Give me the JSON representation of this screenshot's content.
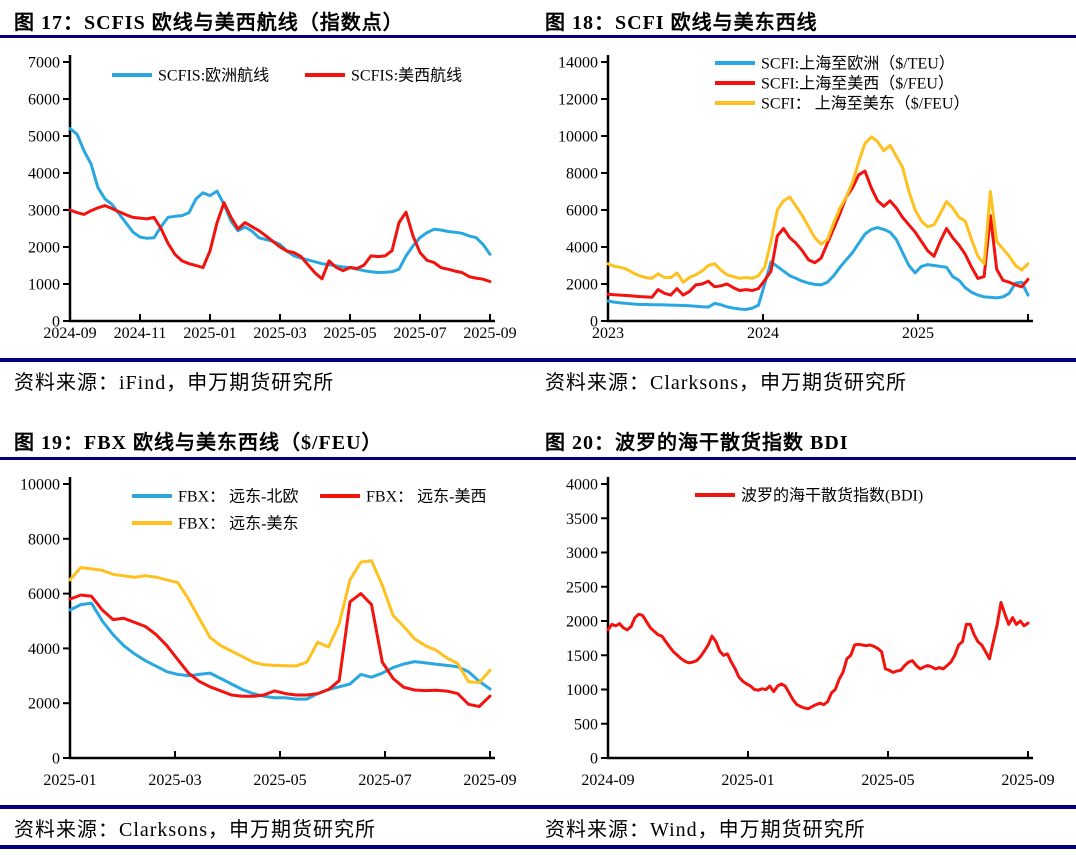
{
  "rule_color": "#000080",
  "chart_data": [
    {
      "type": "line",
      "title": "图 17：SCFIS 欧线与美西航线（指数点）",
      "source": "资料来源：iFind，申万期货研究所",
      "ylim": [
        0,
        7000
      ],
      "yticks": [
        0,
        1000,
        2000,
        3000,
        4000,
        5000,
        6000,
        7000
      ],
      "xticks": [
        {
          "pos": 0,
          "label": "2024-09"
        },
        {
          "pos": 0.1667,
          "label": "2024-11"
        },
        {
          "pos": 0.3333,
          "label": "2025-01"
        },
        {
          "pos": 0.5,
          "label": "2025-03"
        },
        {
          "pos": 0.6667,
          "label": "2025-05"
        },
        {
          "pos": 0.8333,
          "label": "2025-07"
        },
        {
          "pos": 1,
          "label": "2025-09"
        }
      ],
      "series": [
        {
          "name": "SCFIS:欧洲航线",
          "color": "#29A7E0",
          "values": [
            5200,
            5050,
            4600,
            4250,
            3600,
            3300,
            3150,
            2900,
            2650,
            2400,
            2270,
            2235,
            2250,
            2550,
            2800,
            2830,
            2850,
            2930,
            3300,
            3465,
            3390,
            3510,
            3150,
            2700,
            2440,
            2540,
            2430,
            2250,
            2200,
            2150,
            2070,
            1890,
            1760,
            1700,
            1650,
            1600,
            1550,
            1520,
            1490,
            1460,
            1446,
            1400,
            1360,
            1330,
            1311,
            1320,
            1330,
            1400,
            1760,
            2030,
            2254,
            2390,
            2478,
            2460,
            2420,
            2400,
            2370,
            2300,
            2254,
            2074,
            1804
          ]
        },
        {
          "name": "SCFIS:美西航线",
          "color": "#F2120E",
          "values": [
            3000,
            2930,
            2880,
            2980,
            3060,
            3120,
            3040,
            2950,
            2870,
            2800,
            2780,
            2760,
            2800,
            2500,
            2100,
            1800,
            1624,
            1550,
            1500,
            1444,
            1894,
            2650,
            3196,
            2800,
            2490,
            2660,
            2550,
            2440,
            2300,
            2150,
            2000,
            1890,
            1850,
            1740,
            1520,
            1300,
            1140,
            1625,
            1450,
            1360,
            1446,
            1420,
            1510,
            1760,
            1740,
            1760,
            1900,
            2660,
            2940,
            2300,
            1850,
            1640,
            1580,
            1440,
            1400,
            1350,
            1310,
            1200,
            1160,
            1130,
            1068
          ]
        }
      ]
    },
    {
      "type": "line",
      "title": "图 18：SCFI 欧线与美东西线",
      "source": "资料来源：Clarksons，申万期货研究所",
      "ylim": [
        0,
        14000
      ],
      "yticks": [
        0,
        2000,
        4000,
        6000,
        8000,
        10000,
        12000,
        14000
      ],
      "xticks": [
        {
          "pos": 0,
          "label": "2023"
        },
        {
          "pos": 0.369,
          "label": "2024"
        },
        {
          "pos": 0.738,
          "label": "2025"
        },
        {
          "pos": 1,
          "label": ""
        }
      ],
      "series": [
        {
          "name": "SCFI:上海至欧洲（$/TEU）",
          "color": "#29A7E0",
          "values": [
            1080,
            1020,
            980,
            950,
            920,
            900,
            890,
            880,
            880,
            870,
            860,
            850,
            840,
            820,
            800,
            770,
            750,
            950,
            880,
            760,
            700,
            650,
            620,
            700,
            850,
            2000,
            3200,
            2950,
            2700,
            2450,
            2300,
            2150,
            2050,
            1980,
            1950,
            2100,
            2450,
            2900,
            3300,
            3700,
            4200,
            4700,
            4950,
            5050,
            4950,
            4800,
            4400,
            3700,
            3000,
            2600,
            2950,
            3050,
            3000,
            2950,
            2900,
            2400,
            2200,
            1800,
            1550,
            1400,
            1300,
            1280,
            1250,
            1300,
            1500,
            2050,
            2100,
            1400
          ]
        },
        {
          "name": "SCFI:上海至美西（$/FEU）",
          "color": "#F2120E",
          "values": [
            1450,
            1420,
            1400,
            1380,
            1350,
            1320,
            1300,
            1280,
            1700,
            1500,
            1400,
            1750,
            1400,
            1600,
            1950,
            2000,
            2150,
            1850,
            1900,
            2000,
            1800,
            1650,
            1700,
            1650,
            1750,
            2200,
            2700,
            4600,
            5000,
            4500,
            4200,
            3800,
            3300,
            3150,
            3400,
            4200,
            5000,
            5800,
            6700,
            7200,
            7900,
            8100,
            7200,
            6500,
            6200,
            6500,
            6100,
            5600,
            5200,
            4800,
            4300,
            3800,
            3500,
            4300,
            5000,
            4500,
            4100,
            3600,
            2900,
            2300,
            2400,
            5700,
            2800,
            2200,
            2100,
            1950,
            1850,
            2250
          ]
        },
        {
          "name": "SCFI： 上海至美东（$/FEU）",
          "color": "#FFC120",
          "values": [
            3100,
            2950,
            2900,
            2800,
            2600,
            2450,
            2350,
            2300,
            2550,
            2350,
            2350,
            2600,
            2100,
            2350,
            2500,
            2700,
            3000,
            3100,
            2750,
            2500,
            2400,
            2300,
            2350,
            2300,
            2450,
            2900,
            4300,
            6000,
            6500,
            6700,
            6200,
            5700,
            5100,
            4500,
            4150,
            4400,
            5300,
            6100,
            6700,
            7500,
            8600,
            9600,
            9950,
            9700,
            9200,
            9500,
            8900,
            8300,
            7000,
            6000,
            5400,
            5100,
            5200,
            5800,
            6450,
            6100,
            5600,
            5400,
            4400,
            3500,
            3100,
            7000,
            4300,
            3900,
            3500,
            3000,
            2750,
            3100
          ]
        }
      ]
    },
    {
      "type": "line",
      "title": "图 19：FBX 欧线与美东西线（$/FEU）",
      "source": "资料来源：Clarksons，申万期货研究所",
      "ylim": [
        0,
        10000
      ],
      "yticks": [
        0,
        2000,
        4000,
        6000,
        8000,
        10000
      ],
      "xticks": [
        {
          "pos": 0,
          "label": "2025-01"
        },
        {
          "pos": 0.25,
          "label": "2025-03"
        },
        {
          "pos": 0.5,
          "label": "2025-05"
        },
        {
          "pos": 0.75,
          "label": "2025-07"
        },
        {
          "pos": 1,
          "label": "2025-09"
        }
      ],
      "series": [
        {
          "name": "FBX： 远东-北欧",
          "color": "#29A7E0",
          "values": [
            5400,
            5600,
            5650,
            5000,
            4500,
            4100,
            3800,
            3550,
            3350,
            3150,
            3050,
            3000,
            3050,
            3100,
            2900,
            2700,
            2500,
            2350,
            2250,
            2200,
            2200,
            2150,
            2150,
            2350,
            2500,
            2600,
            2700,
            3050,
            2950,
            3100,
            3300,
            3430,
            3520,
            3470,
            3420,
            3380,
            3330,
            3150,
            2800,
            2520
          ]
        },
        {
          "name": "FBX： 远东-美西",
          "color": "#F2120E",
          "values": [
            5800,
            5950,
            5900,
            5400,
            5050,
            5100,
            4950,
            4800,
            4500,
            4100,
            3600,
            3100,
            2800,
            2600,
            2450,
            2300,
            2250,
            2250,
            2300,
            2450,
            2350,
            2300,
            2300,
            2350,
            2500,
            2820,
            5700,
            6000,
            5600,
            3500,
            2900,
            2580,
            2480,
            2460,
            2470,
            2440,
            2350,
            1960,
            1880,
            2260
          ]
        },
        {
          "name": "FBX： 远东-美东",
          "color": "#FFC120",
          "values": [
            6500,
            6950,
            6900,
            6850,
            6700,
            6650,
            6600,
            6650,
            6600,
            6500,
            6400,
            5800,
            5100,
            4400,
            4100,
            3900,
            3700,
            3500,
            3400,
            3380,
            3370,
            3360,
            3500,
            4225,
            4050,
            4900,
            6500,
            7150,
            7200,
            6300,
            5200,
            4800,
            4350,
            4100,
            3930,
            3650,
            3450,
            2780,
            2750,
            3200
          ]
        }
      ]
    },
    {
      "type": "line",
      "title": "图 20：波罗的海干散货指数 BDI",
      "source": "资料来源：Wind，申万期货研究所",
      "ylim": [
        0,
        4000
      ],
      "yticks": [
        0,
        500,
        1000,
        1500,
        2000,
        2500,
        3000,
        3500,
        4000
      ],
      "xticks": [
        {
          "pos": 0,
          "label": "2024-09"
        },
        {
          "pos": 0.3333,
          "label": "2025-01"
        },
        {
          "pos": 0.6667,
          "label": "2025-05"
        },
        {
          "pos": 1,
          "label": "2025-09"
        }
      ],
      "series": [
        {
          "name": "波罗的海干散货指数(BDI)",
          "color": "#F2120E",
          "values": [
            1870,
            1950,
            1930,
            1960,
            1900,
            1870,
            1920,
            2050,
            2100,
            2080,
            1990,
            1900,
            1850,
            1800,
            1780,
            1700,
            1620,
            1550,
            1500,
            1450,
            1410,
            1390,
            1400,
            1420,
            1480,
            1560,
            1650,
            1780,
            1700,
            1560,
            1500,
            1520,
            1400,
            1300,
            1180,
            1120,
            1080,
            1050,
            1000,
            990,
            1010,
            1000,
            1050,
            970,
            1050,
            1080,
            1050,
            950,
            850,
            780,
            750,
            730,
            720,
            750,
            780,
            800,
            780,
            820,
            950,
            1000,
            1150,
            1250,
            1450,
            1500,
            1650,
            1660,
            1650,
            1640,
            1650,
            1630,
            1600,
            1550,
            1300,
            1280,
            1250,
            1270,
            1280,
            1350,
            1400,
            1420,
            1350,
            1300,
            1330,
            1350,
            1330,
            1300,
            1320,
            1300,
            1350,
            1400,
            1500,
            1650,
            1700,
            1950,
            1950,
            1800,
            1700,
            1650,
            1550,
            1450,
            1700,
            1950,
            2270,
            2100,
            1950,
            2050,
            1950,
            2000,
            1930,
            1970
          ]
        }
      ]
    }
  ]
}
